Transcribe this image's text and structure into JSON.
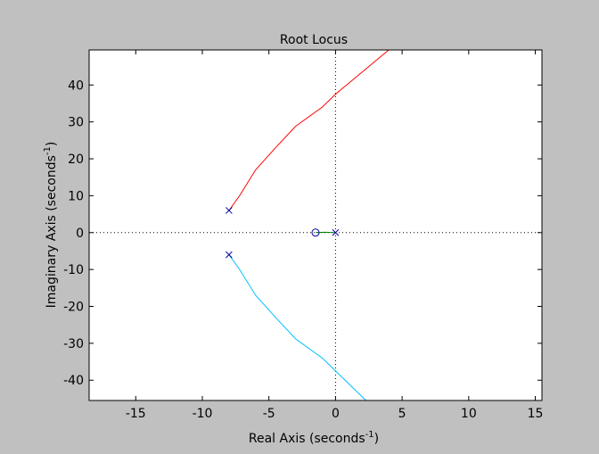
{
  "window": {
    "background": "#c0c0c0"
  },
  "chart_data": {
    "type": "line",
    "title": "Root Locus",
    "xlabel": {
      "text": "Real Axis (seconds",
      "superscript": "-1",
      "suffix": ")"
    },
    "ylabel": {
      "text": "Imaginary Axis (seconds",
      "superscript": "-1",
      "suffix": ")"
    },
    "xlim": [
      -18.5,
      15.5
    ],
    "ylim": [
      -45.5,
      49.5
    ],
    "xticks": [
      -15,
      -10,
      -5,
      0,
      5,
      10,
      15
    ],
    "xtick_labels": [
      "-15",
      "-10",
      "-5",
      "0",
      "5",
      "10",
      "15"
    ],
    "yticks": [
      -40,
      -30,
      -20,
      -10,
      0,
      10,
      20,
      30,
      40
    ],
    "ytick_labels": [
      "-40",
      "-30",
      "-20",
      "-10",
      "0",
      "10",
      "20",
      "30",
      "40"
    ],
    "grid": false,
    "reference_lines": {
      "horizontal_at_y": 0,
      "vertical_at_x": 0,
      "style": "dotted"
    },
    "series": [
      {
        "color": "#ff0000",
        "x": [
          -8,
          -7.2,
          -6,
          -4.5,
          -3,
          -1,
          0,
          1.5,
          3,
          4
        ],
        "y": [
          6,
          10,
          17,
          23,
          28.8,
          34,
          37.5,
          42,
          46.5,
          49.5
        ]
      },
      {
        "color": "#00bfff",
        "x": [
          -8,
          -7.2,
          -6,
          -4.5,
          -3,
          -1,
          0,
          1,
          2,
          2.3
        ],
        "y": [
          -6,
          -10,
          -17,
          -23,
          -28.8,
          -34,
          -37.5,
          -41,
          -44.5,
          -45.5
        ]
      },
      {
        "color": "#008000",
        "x": [
          -1.5,
          -1.2,
          -0.8,
          -0.4,
          0
        ],
        "y": [
          0,
          0.05,
          0.08,
          0.05,
          0
        ]
      }
    ],
    "poles": {
      "marker": "x",
      "color": "#0000a0",
      "points": [
        [
          -8,
          6
        ],
        [
          -8,
          -6
        ],
        [
          0,
          0
        ]
      ]
    },
    "zeros": {
      "marker": "o",
      "color": "#0000a0",
      "points": [
        [
          -1.5,
          0
        ]
      ]
    }
  }
}
